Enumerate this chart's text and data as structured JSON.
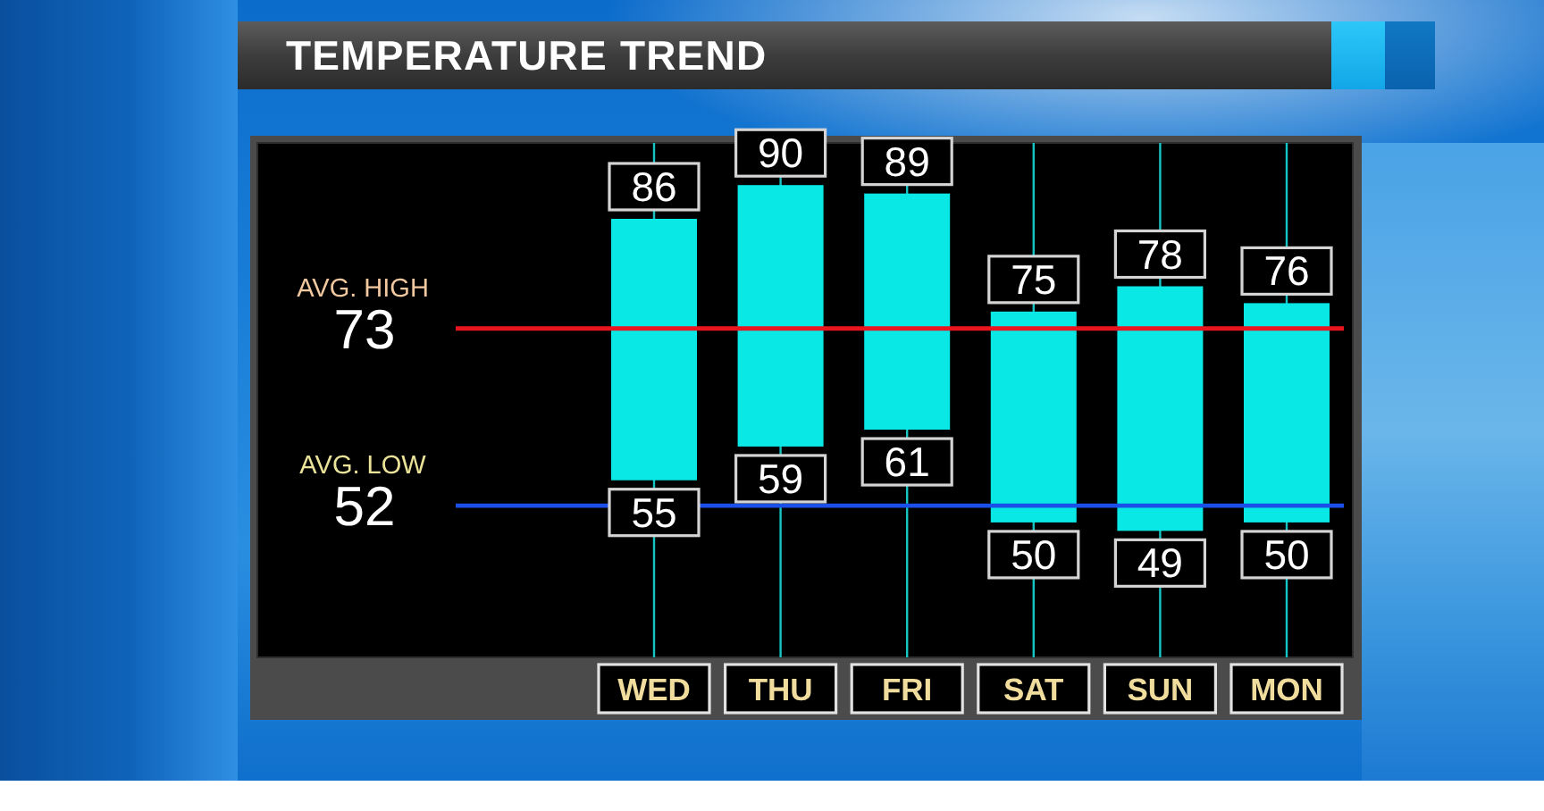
{
  "chart_data": {
    "type": "bar",
    "title": "TEMPERATURE TREND",
    "categories": [
      "WED",
      "THU",
      "FRI",
      "SAT",
      "SUN",
      "MON"
    ],
    "base": [
      55,
      59,
      61,
      50,
      49,
      50
    ],
    "values": [
      31,
      31,
      28,
      25,
      29,
      26
    ],
    "color": "#0ae8e6",
    "ylim": [
      34,
      95
    ],
    "yticks": [
      52,
      73
    ],
    "grid": "x",
    "ref_lines": [
      {
        "axis": "y",
        "value": 73,
        "label": "AVG. HIGH",
        "color": "#e8141e"
      },
      {
        "axis": "y",
        "value": 52,
        "label": "AVG. LOW",
        "color": "#1a50e8"
      }
    ],
    "annotations": [
      {
        "text": "86",
        "x": "WED",
        "y": 86
      },
      {
        "text": "90",
        "x": "THU",
        "y": 90
      },
      {
        "text": "89",
        "x": "FRI",
        "y": 89
      },
      {
        "text": "75",
        "x": "SAT",
        "y": 75
      },
      {
        "text": "78",
        "x": "SUN",
        "y": 78
      },
      {
        "text": "76",
        "x": "MON",
        "y": 76
      },
      {
        "text": "55",
        "x": "WED",
        "y": 55
      },
      {
        "text": "59",
        "x": "THU",
        "y": 59
      },
      {
        "text": "61",
        "x": "FRI",
        "y": 61
      },
      {
        "text": "50",
        "x": "SAT",
        "y": 50
      },
      {
        "text": "49",
        "x": "SUN",
        "y": 49
      },
      {
        "text": "50",
        "x": "MON",
        "y": 50
      }
    ]
  }
}
